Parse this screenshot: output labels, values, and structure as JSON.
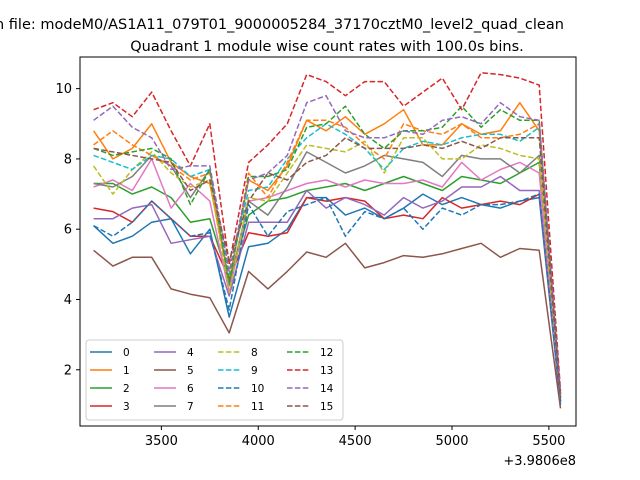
{
  "chart_data": {
    "type": "line",
    "suptitle": "n file: modeM0/AS1A11_079T01_9000005284_37170cztM0_level2_quad_clean",
    "title": "Quadrant 1 module wise count rates with 100.0s bins.",
    "xlabel": "",
    "ylabel": "",
    "x_offset_label": "+3.9806e8",
    "xlim": [
      3080,
      5640
    ],
    "ylim": [
      0.4,
      10.9
    ],
    "x_ticks": [
      3500,
      4000,
      4500,
      5000,
      5500
    ],
    "y_ticks": [
      2,
      4,
      6,
      8,
      10
    ],
    "x_tick_labels": [
      "3500",
      "4000",
      "4500",
      "5000",
      "5500"
    ],
    "y_tick_labels": [
      "2",
      "4",
      "6",
      "8",
      "10"
    ],
    "grid": false,
    "legend_position": "lower-left",
    "x": [
      3150,
      3250,
      3350,
      3450,
      3550,
      3650,
      3750,
      3850,
      3950,
      4050,
      4150,
      4250,
      4350,
      4450,
      4550,
      4650,
      4750,
      4850,
      4950,
      5050,
      5150,
      5250,
      5350,
      5450,
      5560
    ],
    "series": [
      {
        "name": "0",
        "color": "#1f77b4",
        "dash": "solid",
        "values": [
          6.1,
          5.6,
          5.8,
          6.2,
          6.3,
          5.3,
          6.0,
          3.5,
          5.5,
          5.6,
          6.0,
          6.9,
          6.9,
          6.4,
          6.6,
          6.3,
          6.6,
          7.0,
          6.7,
          6.9,
          6.7,
          6.6,
          6.8,
          6.9,
          1.0
        ]
      },
      {
        "name": "1",
        "color": "#ff7f0e",
        "dash": "solid",
        "values": [
          8.8,
          8.0,
          8.3,
          9.0,
          7.9,
          7.5,
          7.3,
          4.5,
          7.4,
          7.1,
          7.8,
          9.1,
          8.8,
          9.2,
          8.7,
          9.0,
          9.4,
          8.4,
          8.4,
          9.0,
          8.7,
          8.8,
          9.6,
          8.8,
          1.2
        ]
      },
      {
        "name": "2",
        "color": "#2ca02c",
        "dash": "solid",
        "values": [
          7.3,
          7.3,
          7.0,
          7.2,
          6.9,
          6.2,
          6.3,
          4.5,
          6.4,
          6.8,
          6.9,
          7.1,
          7.2,
          7.3,
          7.1,
          7.3,
          7.5,
          7.3,
          7.1,
          7.5,
          7.4,
          7.3,
          7.6,
          7.9,
          1.1
        ]
      },
      {
        "name": "3",
        "color": "#d62728",
        "dash": "solid",
        "values": [
          6.6,
          6.5,
          6.2,
          6.8,
          6.3,
          5.8,
          5.8,
          4.6,
          5.9,
          5.8,
          5.9,
          6.9,
          6.8,
          6.9,
          6.8,
          6.3,
          6.4,
          6.3,
          6.9,
          6.6,
          6.7,
          6.8,
          6.7,
          7.0,
          1.1
        ]
      },
      {
        "name": "4",
        "color": "#9467bd",
        "dash": "solid",
        "values": [
          6.3,
          6.3,
          6.6,
          6.7,
          5.6,
          5.7,
          5.8,
          4.1,
          6.2,
          6.2,
          6.2,
          7.1,
          6.6,
          6.9,
          6.7,
          6.4,
          6.9,
          6.6,
          6.8,
          7.2,
          7.2,
          7.5,
          7.1,
          7.1,
          1.1
        ]
      },
      {
        "name": "5",
        "color": "#8c564b",
        "dash": "solid",
        "values": [
          5.4,
          4.95,
          5.2,
          5.2,
          4.3,
          4.15,
          4.05,
          3.05,
          4.8,
          4.3,
          4.8,
          5.35,
          5.2,
          5.6,
          4.9,
          5.05,
          5.25,
          5.2,
          5.3,
          5.45,
          5.6,
          5.2,
          5.45,
          5.4,
          0.9
        ]
      },
      {
        "name": "6",
        "color": "#e377c2",
        "dash": "solid",
        "values": [
          7.2,
          7.4,
          7.1,
          8.0,
          6.6,
          7.3,
          6.8,
          4.2,
          6.8,
          6.9,
          7.1,
          7.3,
          7.4,
          7.2,
          7.4,
          7.3,
          7.3,
          7.4,
          7.2,
          7.9,
          7.4,
          7.7,
          7.9,
          7.6,
          1.1
        ]
      },
      {
        "name": "7",
        "color": "#7f7f7f",
        "dash": "solid",
        "values": [
          7.3,
          7.2,
          7.5,
          8.1,
          7.8,
          6.9,
          7.7,
          4.4,
          6.8,
          6.4,
          7.2,
          8.2,
          7.9,
          7.6,
          7.8,
          8.1,
          8.0,
          7.9,
          7.5,
          8.1,
          8.0,
          8.0,
          7.6,
          8.1,
          1.2
        ]
      },
      {
        "name": "8",
        "color": "#bcbd22",
        "dash": "dashed",
        "values": [
          7.8,
          7.0,
          7.7,
          8.2,
          7.6,
          7.2,
          7.4,
          4.2,
          6.9,
          6.8,
          7.6,
          8.4,
          8.3,
          8.2,
          8.5,
          7.6,
          8.6,
          8.6,
          8.0,
          8.0,
          8.4,
          8.3,
          8.1,
          8.0,
          1.3
        ]
      },
      {
        "name": "9",
        "color": "#17becf",
        "dash": "dashed",
        "values": [
          8.1,
          7.9,
          7.7,
          8.1,
          8.0,
          7.5,
          7.7,
          4.7,
          7.1,
          7.2,
          8.0,
          8.6,
          9.0,
          8.7,
          8.3,
          7.7,
          8.3,
          8.5,
          8.4,
          8.6,
          8.7,
          8.7,
          8.5,
          8.9,
          1.3
        ]
      },
      {
        "name": "10",
        "color": "#1f77b4",
        "dash": "dashed",
        "values": [
          6.1,
          5.8,
          6.2,
          6.8,
          6.3,
          5.8,
          5.9,
          3.7,
          6.7,
          5.8,
          6.5,
          6.7,
          6.9,
          5.8,
          6.5,
          6.3,
          6.6,
          6.0,
          6.6,
          6.4,
          6.7,
          6.7,
          6.8,
          7.0,
          1.1
        ]
      },
      {
        "name": "11",
        "color": "#ff7f0e",
        "dash": "dashed",
        "values": [
          8.4,
          8.8,
          8.4,
          8.1,
          7.8,
          7.4,
          7.6,
          4.5,
          7.6,
          6.9,
          7.9,
          9.1,
          9.1,
          8.9,
          8.4,
          8.0,
          9.0,
          8.8,
          8.7,
          9.0,
          8.6,
          8.6,
          8.7,
          9.0,
          1.3
        ]
      },
      {
        "name": "12",
        "color": "#2ca02c",
        "dash": "dashed",
        "values": [
          8.3,
          8.1,
          8.2,
          8.3,
          8.0,
          6.7,
          7.7,
          4.5,
          7.5,
          7.5,
          7.7,
          8.9,
          9.0,
          9.5,
          8.7,
          8.3,
          8.8,
          8.8,
          8.9,
          9.5,
          8.9,
          9.4,
          9.1,
          9.1,
          1.3
        ]
      },
      {
        "name": "13",
        "color": "#d62728",
        "dash": "dashed",
        "values": [
          9.4,
          9.6,
          9.2,
          9.9,
          8.8,
          7.8,
          9.0,
          5.0,
          7.9,
          8.4,
          9.0,
          10.4,
          10.2,
          9.8,
          10.2,
          10.2,
          9.5,
          9.9,
          10.3,
          9.4,
          10.45,
          10.4,
          10.3,
          10.1,
          1.4
        ]
      },
      {
        "name": "14",
        "color": "#9467bd",
        "dash": "dashed",
        "values": [
          9.1,
          9.5,
          8.9,
          8.6,
          7.7,
          7.8,
          7.8,
          4.8,
          7.4,
          7.6,
          8.1,
          9.6,
          9.8,
          8.8,
          8.6,
          8.6,
          8.8,
          8.7,
          9.1,
          9.2,
          9.0,
          9.6,
          9.2,
          9.1,
          1.3
        ]
      },
      {
        "name": "15",
        "color": "#8c564b",
        "dash": "dashed",
        "values": [
          8.3,
          8.2,
          8.1,
          8.0,
          7.9,
          7.1,
          7.4,
          5.1,
          6.8,
          7.6,
          7.4,
          7.9,
          8.1,
          8.6,
          8.3,
          8.3,
          8.3,
          8.4,
          8.3,
          8.5,
          8.3,
          8.6,
          8.6,
          8.6,
          1.2
        ]
      }
    ]
  }
}
